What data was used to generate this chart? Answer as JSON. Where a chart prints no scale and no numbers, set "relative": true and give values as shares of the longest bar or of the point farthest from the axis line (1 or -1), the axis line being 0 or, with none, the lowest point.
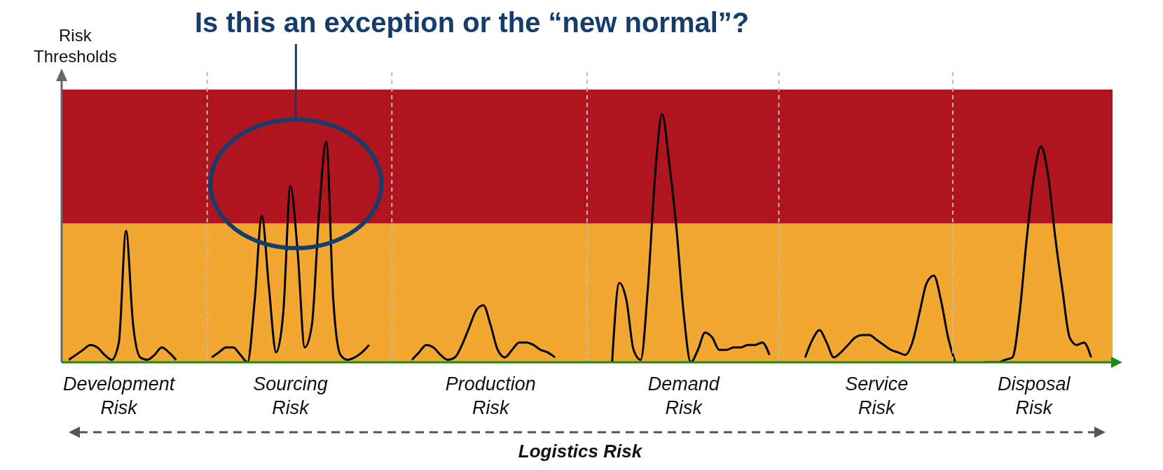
{
  "chart_data": {
    "type": "line",
    "relative": true,
    "title": "Is this an exception or the “new normal”?",
    "ylabel": "Risk Thresholds",
    "xlabel": "Logistics Risk",
    "categories": [
      null,
      null,
      null,
      null,
      null,
      null,
      null,
      null,
      "Development Risk",
      null,
      null,
      null,
      null,
      null,
      null,
      null,
      null,
      null,
      null,
      null,
      null,
      null,
      null,
      null,
      null,
      null,
      null,
      null,
      null,
      null,
      null,
      null,
      "Sourcing Risk",
      null,
      null,
      null,
      null,
      null,
      null,
      null,
      null,
      null,
      null,
      null,
      null,
      null,
      null,
      null,
      null,
      null,
      null,
      null,
      null,
      null,
      null,
      null,
      null,
      null,
      null,
      null,
      "Production Risk",
      null,
      null,
      null,
      null,
      null,
      null,
      null,
      null,
      null,
      null,
      null,
      null,
      null,
      null,
      null,
      null,
      null,
      null,
      null,
      null,
      null,
      null,
      null,
      null,
      null,
      null,
      "Demand Risk",
      null,
      null,
      null,
      null,
      null,
      null,
      null,
      null,
      null,
      null,
      null,
      null,
      null,
      null,
      null,
      null,
      null,
      null,
      null,
      null,
      null,
      null,
      null,
      null,
      null,
      null,
      "Service Risk",
      null,
      null,
      null,
      null,
      null,
      null,
      null,
      null,
      null,
      null,
      null,
      null,
      null,
      null,
      null,
      null,
      null,
      null,
      null,
      null,
      null,
      "Disposal Risk",
      null,
      null,
      null,
      null,
      null,
      null,
      null,
      null,
      null,
      null,
      null
    ],
    "bands": [
      {
        "axis": "y",
        "from": 0,
        "to": 0.56,
        "color": "#f2a830"
      },
      {
        "axis": "y",
        "from": 0.56,
        "to": 1.1,
        "color": "#b0141e"
      }
    ],
    "series": [
      {
        "color": "#000000",
        "values": [
          null,
          0.01,
          0.03,
          0.05,
          0.07,
          0.06,
          0.03,
          0.01,
          0.08,
          0.53,
          0.15,
          0.02,
          0.01,
          0.03,
          0.06,
          0.04,
          0.01,
          null,
          null,
          null,
          null,
          0.02,
          0.04,
          0.06,
          0.06,
          0.03,
          0,
          0.25,
          0.59,
          0.3,
          0.04,
          0.2,
          0.71,
          0.45,
          0.06,
          0.15,
          0.6,
          0.89,
          0.25,
          0.03,
          0.01,
          0.02,
          0.04,
          0.07,
          null,
          null,
          null,
          null,
          null,
          0.01,
          0.04,
          0.07,
          0.06,
          0.03,
          0.01,
          0.02,
          0.07,
          0.14,
          0.21,
          0.23,
          0.15,
          0.05,
          0.02,
          0.05,
          0.08,
          0.08,
          0.07,
          0.05,
          0.04,
          0.02,
          null,
          null,
          null,
          null,
          null,
          null,
          null,
          0,
          0.32,
          0.25,
          0.05,
          0.01,
          0.3,
          0.75,
          1,
          0.8,
          0.54,
          0.2,
          0,
          0.05,
          0.12,
          0.1,
          0.05,
          0.05,
          0.06,
          0.06,
          0.07,
          0.07,
          0.08,
          0.03,
          null,
          null,
          null,
          null,
          0.02,
          0.09,
          0.13,
          0.08,
          0.02,
          0.04,
          0.07,
          0.1,
          0.11,
          0.11,
          0.09,
          0.07,
          0.05,
          0.04,
          0.03,
          0.08,
          0.2,
          0.32,
          0.35,
          0.25,
          0.1,
          0,
          null,
          null,
          null,
          0,
          0,
          0,
          0.01,
          0.02,
          0.2,
          0.5,
          0.75,
          0.87,
          0.75,
          0.5,
          0.29,
          0.1,
          0.07,
          0.08,
          0.02,
          null,
          null,
          null
        ]
      }
    ]
  }
}
